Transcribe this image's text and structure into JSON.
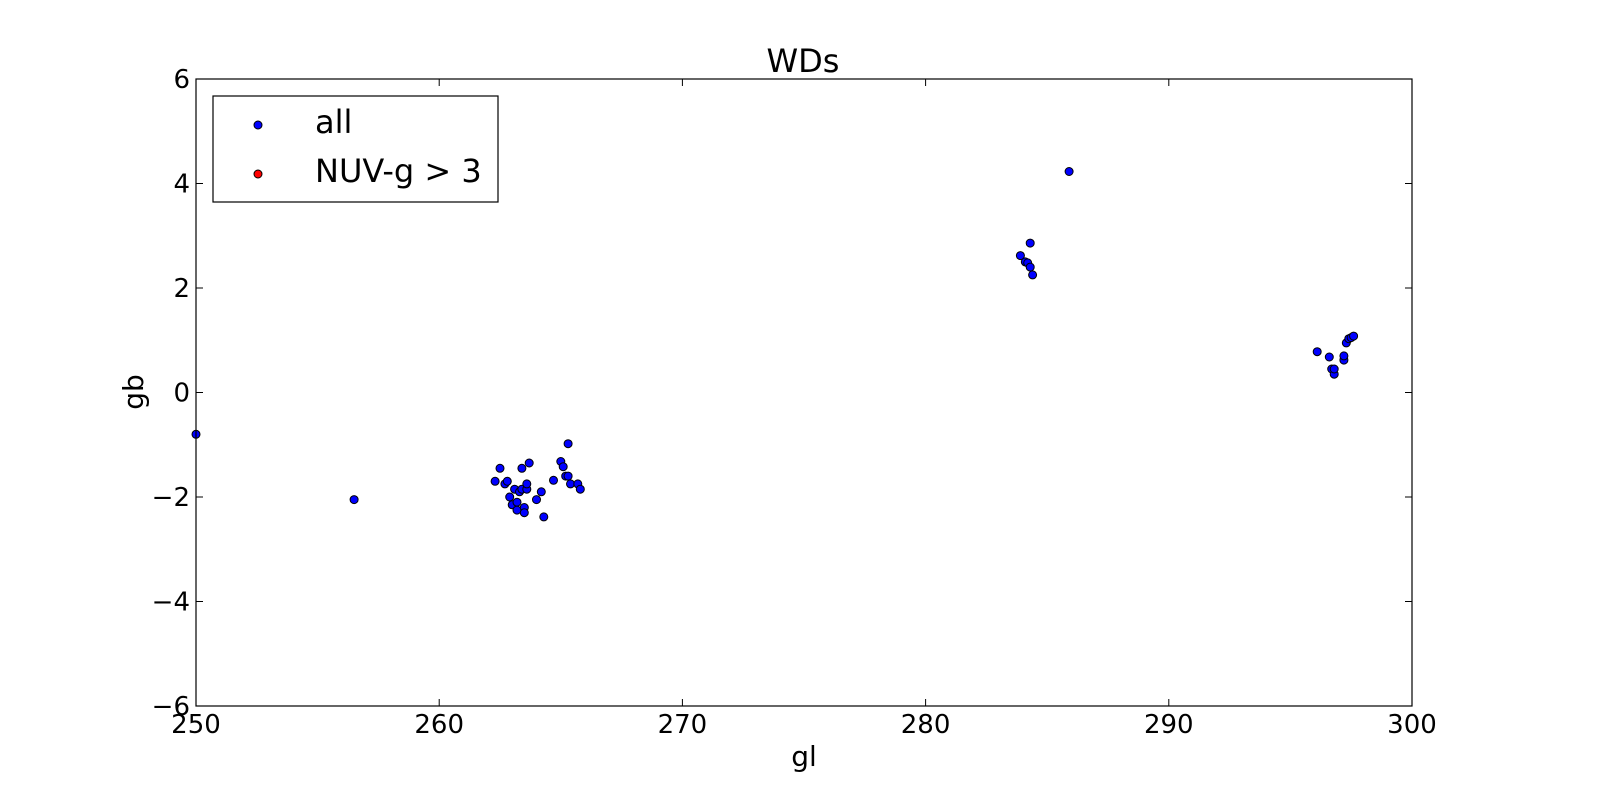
{
  "chart_data": {
    "type": "scatter",
    "title": "WDs",
    "xlabel": "gl",
    "ylabel": "gb",
    "xlim": [
      250,
      300
    ],
    "ylim": [
      -6,
      6
    ],
    "xticks": [
      250,
      260,
      270,
      280,
      290,
      300
    ],
    "yticks": [
      -6,
      -4,
      -2,
      0,
      2,
      4,
      6
    ],
    "xtick_labels": [
      "250",
      "260",
      "270",
      "280",
      "290",
      "300"
    ],
    "ytick_labels": [
      "−6",
      "−4",
      "−2",
      "0",
      "2",
      "4",
      "6"
    ],
    "grid": false,
    "legend_position": "top-left",
    "series": [
      {
        "name": "all",
        "color": "#0000ff",
        "points": [
          [
            250.0,
            -0.8
          ],
          [
            256.5,
            -2.05
          ],
          [
            262.3,
            -1.7
          ],
          [
            262.5,
            -1.45
          ],
          [
            262.7,
            -1.75
          ],
          [
            262.8,
            -1.7
          ],
          [
            262.9,
            -2.0
          ],
          [
            263.0,
            -2.15
          ],
          [
            263.1,
            -1.85
          ],
          [
            263.2,
            -2.1
          ],
          [
            263.2,
            -2.25
          ],
          [
            263.3,
            -1.9
          ],
          [
            263.4,
            -1.85
          ],
          [
            263.4,
            -1.45
          ],
          [
            263.5,
            -2.2
          ],
          [
            263.5,
            -2.3
          ],
          [
            263.6,
            -1.85
          ],
          [
            263.6,
            -1.75
          ],
          [
            263.7,
            -1.35
          ],
          [
            264.0,
            -2.05
          ],
          [
            264.2,
            -1.9
          ],
          [
            264.3,
            -2.38
          ],
          [
            264.7,
            -1.68
          ],
          [
            265.0,
            -1.32
          ],
          [
            265.1,
            -1.42
          ],
          [
            265.2,
            -1.6
          ],
          [
            265.3,
            -1.6
          ],
          [
            265.3,
            -0.98
          ],
          [
            265.4,
            -1.75
          ],
          [
            265.7,
            -1.75
          ],
          [
            265.8,
            -1.85
          ],
          [
            283.9,
            2.62
          ],
          [
            284.1,
            2.5
          ],
          [
            284.2,
            2.48
          ],
          [
            284.3,
            2.4
          ],
          [
            284.3,
            2.86
          ],
          [
            284.4,
            2.25
          ],
          [
            285.9,
            4.23
          ],
          [
            296.1,
            0.78
          ],
          [
            296.6,
            0.68
          ],
          [
            296.7,
            0.45
          ],
          [
            296.8,
            0.35
          ],
          [
            296.8,
            0.45
          ],
          [
            297.2,
            0.62
          ],
          [
            297.2,
            0.7
          ],
          [
            297.3,
            0.95
          ],
          [
            297.4,
            1.03
          ],
          [
            297.5,
            1.05
          ],
          [
            297.6,
            1.08
          ]
        ]
      },
      {
        "name": "NUV-g > 3",
        "color": "#ff0000",
        "points": []
      }
    ]
  }
}
